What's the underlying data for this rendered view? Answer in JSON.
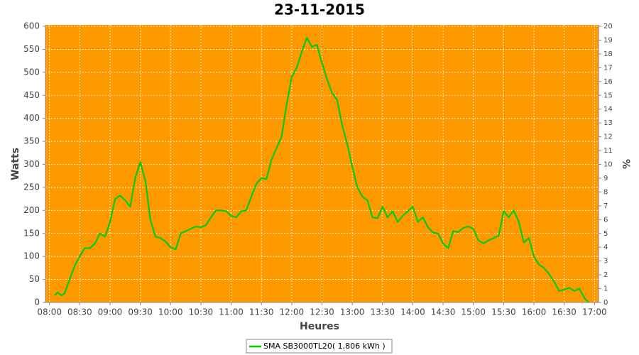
{
  "chart_data": {
    "type": "line",
    "title": "23-11-2015",
    "xlabel": "Heures",
    "ylabel": "Watts",
    "y2label": "%",
    "x": [
      "08:05",
      "08:08",
      "08:12",
      "08:15",
      "08:20",
      "08:25",
      "08:30",
      "08:35",
      "08:40",
      "08:45",
      "08:50",
      "08:55",
      "09:00",
      "09:05",
      "09:10",
      "09:15",
      "09:20",
      "09:25",
      "09:30",
      "09:35",
      "09:40",
      "09:45",
      "09:50",
      "09:55",
      "10:00",
      "10:05",
      "10:10",
      "10:15",
      "10:20",
      "10:25",
      "10:30",
      "10:35",
      "10:40",
      "10:45",
      "10:50",
      "10:55",
      "11:00",
      "11:05",
      "11:10",
      "11:15",
      "11:20",
      "11:25",
      "11:30",
      "11:35",
      "11:40",
      "11:45",
      "11:50",
      "11:55",
      "12:00",
      "12:05",
      "12:10",
      "12:15",
      "12:20",
      "12:25",
      "12:30",
      "12:35",
      "12:40",
      "12:45",
      "12:50",
      "12:55",
      "13:00",
      "13:05",
      "13:10",
      "13:15",
      "13:20",
      "13:25",
      "13:30",
      "13:35",
      "13:40",
      "13:45",
      "13:50",
      "13:55",
      "14:00",
      "14:05",
      "14:10",
      "14:15",
      "14:20",
      "14:25",
      "14:30",
      "14:35",
      "14:40",
      "14:45",
      "14:50",
      "14:55",
      "15:00",
      "15:05",
      "15:10",
      "15:15",
      "15:20",
      "15:25",
      "15:30",
      "15:35",
      "15:40",
      "15:45",
      "15:50",
      "15:55",
      "16:00",
      "16:05",
      "16:10",
      "16:15",
      "16:20",
      "16:25",
      "16:30",
      "16:35",
      "16:40",
      "16:45",
      "16:50",
      "16:54"
    ],
    "series": [
      {
        "name": "SMA SB3000TL20( 1,806 kWh )",
        "color": "#00cc00",
        "values": [
          15,
          22,
          15,
          20,
          50,
          80,
          100,
          118,
          118,
          128,
          150,
          143,
          175,
          225,
          232,
          222,
          208,
          270,
          305,
          265,
          180,
          143,
          140,
          132,
          120,
          115,
          150,
          155,
          160,
          165,
          163,
          168,
          185,
          200,
          200,
          198,
          188,
          185,
          198,
          200,
          230,
          258,
          270,
          268,
          310,
          335,
          360,
          430,
          490,
          510,
          545,
          575,
          555,
          560,
          520,
          485,
          455,
          440,
          385,
          345,
          295,
          250,
          230,
          222,
          185,
          183,
          208,
          185,
          198,
          175,
          188,
          198,
          208,
          175,
          185,
          163,
          152,
          150,
          128,
          118,
          155,
          153,
          162,
          165,
          160,
          135,
          128,
          135,
          140,
          145,
          198,
          185,
          200,
          175,
          130,
          140,
          100,
          82,
          75,
          62,
          45,
          25,
          28,
          32,
          25,
          30,
          10,
          0
        ]
      }
    ],
    "xlim": [
      "07:56",
      "17:04"
    ],
    "xticks": [
      "08:00",
      "08:30",
      "09:00",
      "09:30",
      "10:00",
      "10:30",
      "11:00",
      "11:30",
      "12:00",
      "12:30",
      "13:00",
      "13:30",
      "14:00",
      "14:30",
      "15:00",
      "15:30",
      "16:00",
      "16:30",
      "17:00"
    ],
    "ylim": [
      0,
      600
    ],
    "yticks": [
      0,
      50,
      100,
      150,
      200,
      250,
      300,
      350,
      400,
      450,
      500,
      550,
      600
    ],
    "y2lim": [
      0,
      20
    ],
    "y2ticks": [
      0,
      1,
      2,
      3,
      4,
      5,
      6,
      7,
      8,
      9,
      10,
      11,
      12,
      13,
      14,
      15,
      16,
      17,
      18,
      19,
      20
    ],
    "grid": true,
    "background": "#ff9900",
    "legend": "bottom"
  }
}
